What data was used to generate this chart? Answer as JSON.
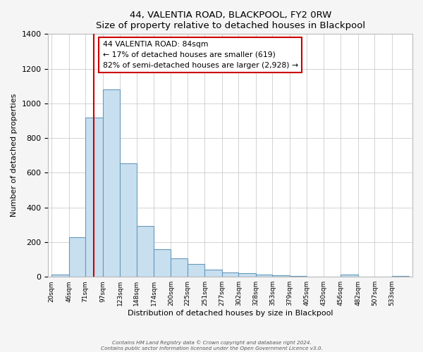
{
  "title": "44, VALENTIA ROAD, BLACKPOOL, FY2 0RW",
  "subtitle": "Size of property relative to detached houses in Blackpool",
  "xlabel": "Distribution of detached houses by size in Blackpool",
  "ylabel": "Number of detached properties",
  "bar_color": "#c8dff0",
  "bar_edge_color": "#6699bb",
  "background_color": "#f5f5f5",
  "plot_bg_color": "#ffffff",
  "bin_labels": [
    "20sqm",
    "46sqm",
    "71sqm",
    "97sqm",
    "123sqm",
    "148sqm",
    "174sqm",
    "200sqm",
    "225sqm",
    "251sqm",
    "277sqm",
    "302sqm",
    "328sqm",
    "353sqm",
    "379sqm",
    "405sqm",
    "430sqm",
    "456sqm",
    "482sqm",
    "507sqm",
    "533sqm"
  ],
  "bin_edges": [
    20,
    46,
    71,
    97,
    123,
    148,
    174,
    200,
    225,
    251,
    277,
    302,
    328,
    353,
    379,
    405,
    430,
    456,
    482,
    507,
    533,
    559
  ],
  "bar_heights": [
    15,
    230,
    920,
    1080,
    655,
    295,
    158,
    108,
    72,
    40,
    25,
    20,
    15,
    10,
    5,
    1,
    0,
    15,
    0,
    0,
    5
  ],
  "ylim": [
    0,
    1400
  ],
  "yticks": [
    0,
    200,
    400,
    600,
    800,
    1000,
    1200,
    1400
  ],
  "vline_x": 84,
  "annotation_line1": "44 VALENTIA ROAD: 84sqm",
  "annotation_line2": "← 17% of detached houses are smaller (619)",
  "annotation_line3": "82% of semi-detached houses are larger (2,928) →",
  "box_color": "#cc0000",
  "footer_line1": "Contains HM Land Registry data © Crown copyright and database right 2024.",
  "footer_line2": "Contains public sector information licensed under the Open Government Licence v3.0."
}
